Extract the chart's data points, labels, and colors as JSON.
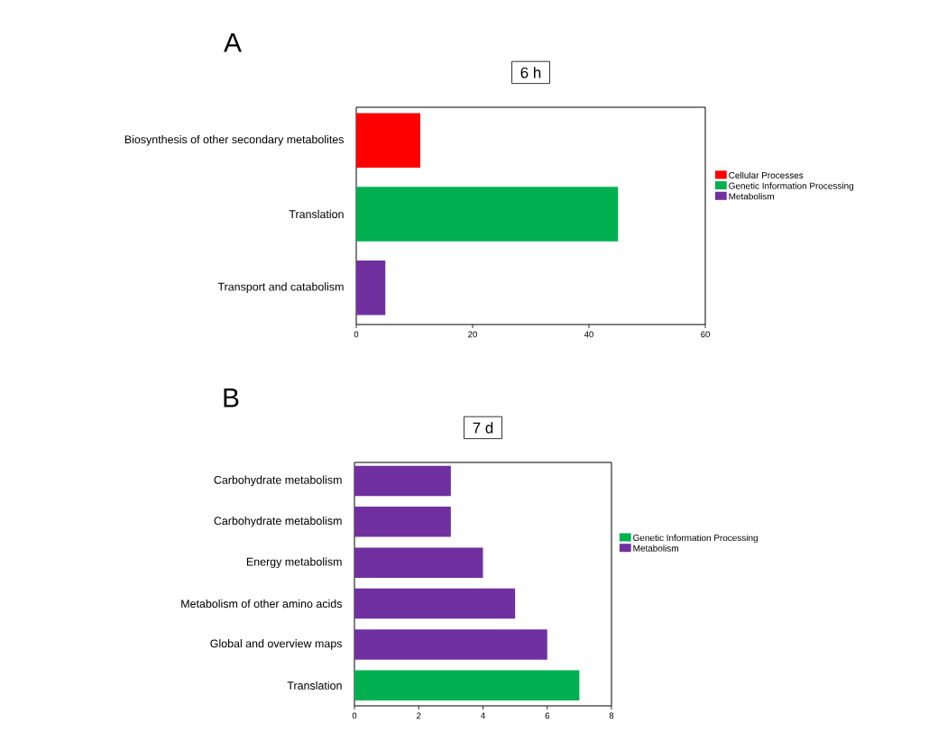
{
  "chart_data": [
    {
      "type": "bar",
      "orientation": "horizontal",
      "stacked": true,
      "title": "6 h",
      "annotations": [
        "A"
      ],
      "categories": [
        "Biosynthesis of other secondary metabolites",
        "Translation",
        "Transport and catabolism"
      ],
      "series": [
        {
          "name": "Cellular Processes",
          "color": "#ff0000",
          "values": [
            11,
            null,
            null
          ]
        },
        {
          "name": "Genetic Information Processing",
          "color": "#00b050",
          "values": [
            null,
            45,
            null
          ]
        },
        {
          "name": "Metabolism",
          "color": "#7030a0",
          "values": [
            null,
            null,
            5
          ]
        }
      ],
      "xlim": [
        0,
        60
      ],
      "xticks": [
        0,
        20,
        40,
        60
      ],
      "legend": "right"
    },
    {
      "type": "bar",
      "orientation": "horizontal",
      "stacked": true,
      "title": "7 d",
      "annotations": [
        "B"
      ],
      "categories": [
        "Carbohydrate metabolism",
        "Carbohydrate metabolism",
        "Energy metabolism",
        "Metabolism of other amino acids",
        "Global and overview maps",
        "Translation"
      ],
      "series": [
        {
          "name": "Genetic Information Processing",
          "color": "#00b050",
          "values": [
            null,
            null,
            null,
            null,
            null,
            7
          ]
        },
        {
          "name": "Metabolism",
          "color": "#7030a0",
          "values": [
            3,
            3,
            4,
            5,
            6,
            null
          ]
        }
      ],
      "xlim": [
        0,
        8
      ],
      "xticks": [
        0,
        2,
        4,
        6,
        8
      ],
      "legend": "right"
    }
  ]
}
